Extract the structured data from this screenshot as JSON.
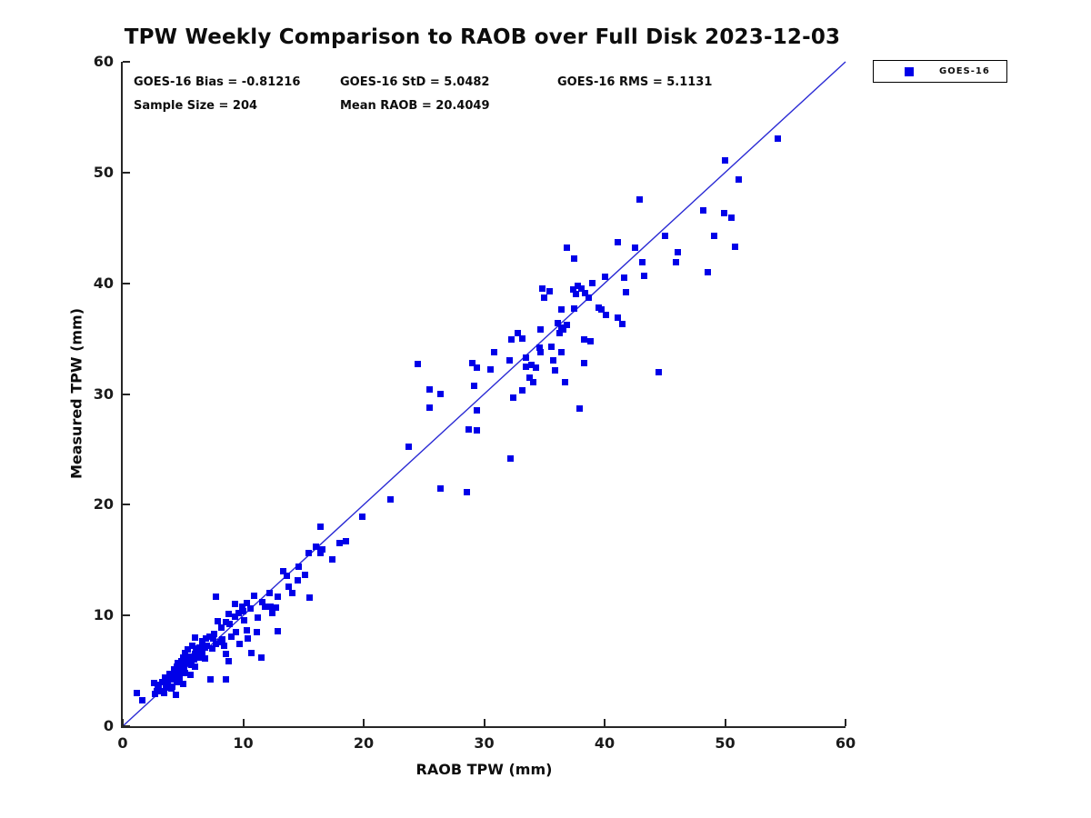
{
  "title": "TPW Weekly Comparison to RAOB over Full Disk 2023-12-03",
  "stats": {
    "bias": "GOES-16 Bias = -0.81216",
    "std": "GOES-16 StD = 5.0482",
    "rms": "GOES-16 RMS = 5.1131",
    "sample_size": "Sample Size = 204",
    "mean_raob": "Mean RAOB = 20.4049"
  },
  "legend": {
    "items": [
      {
        "label": "GOES-16",
        "marker_color": "#0000e8"
      }
    ],
    "position": "top-right-outside"
  },
  "colors": {
    "marker": "#0000e8",
    "reference_line": "#2a2ad4",
    "axis": "#262626",
    "background": "#ffffff"
  },
  "chart_data": {
    "type": "scatter",
    "title": "TPW Weekly Comparison to RAOB over Full Disk 2023-12-03",
    "xlabel": "RAOB TPW (mm)",
    "ylabel": "Measured TPW (mm)",
    "xlim": [
      0,
      60
    ],
    "ylim": [
      0,
      60
    ],
    "xticks": [
      0,
      10,
      20,
      30,
      40,
      50,
      60
    ],
    "yticks": [
      0,
      10,
      20,
      30,
      40,
      50,
      60
    ],
    "grid": false,
    "legend_position": "top-right-outside",
    "reference_line": {
      "type": "identity",
      "from": [
        0,
        0
      ],
      "to": [
        60,
        60
      ]
    },
    "series": [
      {
        "name": "GOES-16",
        "marker": "square",
        "color": "#0000e8",
        "points": [
          [
            1.2,
            3.0
          ],
          [
            1.6,
            2.3
          ],
          [
            2.6,
            3.9
          ],
          [
            7.7,
            11.7
          ],
          [
            10.9,
            11.8
          ],
          [
            11.6,
            11.2
          ],
          [
            9.3,
            11.0
          ],
          [
            9.9,
            10.8
          ],
          [
            10.3,
            11.1
          ],
          [
            10.6,
            10.6
          ],
          [
            8.8,
            10.1
          ],
          [
            9.3,
            9.9
          ],
          [
            7.9,
            9.5
          ],
          [
            8.6,
            9.4
          ],
          [
            10.1,
            9.6
          ],
          [
            11.2,
            9.8
          ],
          [
            10.3,
            8.7
          ],
          [
            9.4,
            8.5
          ],
          [
            11.1,
            8.5
          ],
          [
            6.0,
            8.0
          ],
          [
            6.6,
            7.7
          ],
          [
            7.2,
            8.1
          ],
          [
            7.5,
            7.9
          ],
          [
            8.1,
            7.6
          ],
          [
            8.4,
            7.3
          ],
          [
            6.4,
            7.1
          ],
          [
            6.8,
            7.1
          ],
          [
            5.8,
            7.3
          ],
          [
            5.4,
            6.9
          ],
          [
            5.2,
            6.6
          ],
          [
            5.7,
            6.3
          ],
          [
            6.0,
            6.5
          ],
          [
            6.4,
            6.2
          ],
          [
            6.8,
            6.1
          ],
          [
            4.9,
            5.9
          ],
          [
            5.3,
            5.7
          ],
          [
            5.7,
            5.5
          ],
          [
            6.0,
            5.4
          ],
          [
            4.5,
            5.4
          ],
          [
            4.3,
            5.1
          ],
          [
            4.8,
            5.0
          ],
          [
            5.2,
            4.8
          ],
          [
            3.9,
            4.7
          ],
          [
            3.5,
            4.4
          ],
          [
            5.6,
            4.6
          ],
          [
            4.1,
            4.2
          ],
          [
            4.5,
            4.0
          ],
          [
            3.3,
            4.0
          ],
          [
            3.7,
            3.8
          ],
          [
            5.0,
            3.8
          ],
          [
            3.0,
            3.4
          ],
          [
            4.0,
            3.4
          ],
          [
            2.8,
            3.2
          ],
          [
            3.4,
            3.0
          ],
          [
            4.4,
            2.8
          ],
          [
            7.3,
            4.2
          ],
          [
            8.6,
            4.2
          ],
          [
            8.8,
            5.9
          ],
          [
            10.7,
            6.6
          ],
          [
            11.5,
            6.2
          ],
          [
            13.3,
            14.0
          ],
          [
            13.6,
            13.6
          ],
          [
            12.2,
            12.0
          ],
          [
            11.8,
            10.8
          ],
          [
            12.4,
            10.2
          ],
          [
            12.3,
            10.8
          ],
          [
            26.4,
            21.5
          ],
          [
            28.6,
            21.1
          ],
          [
            22.2,
            20.5
          ],
          [
            19.9,
            18.9
          ],
          [
            16.4,
            18.0
          ],
          [
            16.0,
            16.2
          ],
          [
            16.6,
            16.0
          ],
          [
            15.4,
            15.6
          ],
          [
            16.4,
            15.6
          ],
          [
            18.0,
            16.5
          ],
          [
            18.5,
            16.7
          ],
          [
            17.4,
            15.1
          ],
          [
            14.6,
            14.4
          ],
          [
            15.1,
            13.7
          ],
          [
            14.5,
            13.2
          ],
          [
            13.8,
            12.6
          ],
          [
            14.1,
            12.0
          ],
          [
            12.9,
            11.7
          ],
          [
            15.5,
            11.6
          ],
          [
            12.7,
            10.7
          ],
          [
            12.9,
            8.6
          ],
          [
            24.5,
            32.7
          ],
          [
            29.0,
            32.8
          ],
          [
            29.4,
            32.4
          ],
          [
            30.8,
            33.8
          ],
          [
            30.5,
            32.2
          ],
          [
            32.3,
            34.9
          ],
          [
            32.8,
            35.5
          ],
          [
            33.2,
            35.0
          ],
          [
            34.7,
            35.8
          ],
          [
            33.5,
            33.3
          ],
          [
            34.6,
            34.2
          ],
          [
            34.7,
            33.8
          ],
          [
            35.6,
            34.3
          ],
          [
            35.7,
            33.0
          ],
          [
            36.4,
            33.8
          ],
          [
            33.5,
            32.5
          ],
          [
            33.9,
            32.6
          ],
          [
            34.3,
            32.4
          ],
          [
            35.9,
            32.1
          ],
          [
            33.8,
            31.5
          ],
          [
            34.1,
            31.1
          ],
          [
            36.7,
            31.1
          ],
          [
            33.2,
            30.3
          ],
          [
            32.4,
            29.7
          ],
          [
            38.8,
            34.8
          ],
          [
            38.3,
            32.8
          ],
          [
            37.9,
            28.7
          ],
          [
            25.5,
            30.4
          ],
          [
            26.4,
            30.0
          ],
          [
            25.5,
            28.8
          ],
          [
            29.2,
            30.7
          ],
          [
            29.4,
            28.5
          ],
          [
            28.7,
            26.8
          ],
          [
            29.4,
            26.7
          ],
          [
            23.7,
            25.2
          ],
          [
            32.2,
            24.2
          ],
          [
            48.2,
            46.6
          ],
          [
            45.0,
            44.3
          ],
          [
            50.8,
            43.3
          ],
          [
            41.1,
            43.7
          ],
          [
            42.5,
            43.2
          ],
          [
            36.9,
            43.2
          ],
          [
            37.5,
            42.2
          ],
          [
            43.1,
            41.9
          ],
          [
            46.1,
            42.8
          ],
          [
            45.9,
            41.9
          ],
          [
            48.6,
            41.0
          ],
          [
            40.0,
            40.6
          ],
          [
            41.6,
            40.5
          ],
          [
            43.3,
            40.7
          ],
          [
            39.0,
            40.0
          ],
          [
            37.8,
            39.8
          ],
          [
            38.1,
            39.5
          ],
          [
            37.4,
            39.4
          ],
          [
            38.4,
            39.1
          ],
          [
            37.6,
            39.0
          ],
          [
            41.8,
            39.2
          ],
          [
            38.7,
            38.7
          ],
          [
            34.8,
            39.5
          ],
          [
            35.0,
            38.7
          ],
          [
            35.4,
            39.3
          ],
          [
            36.4,
            37.6
          ],
          [
            37.5,
            37.7
          ],
          [
            39.5,
            37.8
          ],
          [
            39.7,
            37.6
          ],
          [
            40.1,
            37.1
          ],
          [
            41.1,
            36.9
          ],
          [
            41.5,
            36.3
          ],
          [
            36.1,
            36.4
          ],
          [
            36.4,
            36.0
          ],
          [
            36.6,
            35.8
          ],
          [
            36.9,
            36.2
          ],
          [
            36.3,
            35.5
          ],
          [
            38.3,
            34.9
          ],
          [
            32.1,
            33.0
          ],
          [
            54.4,
            53.1
          ],
          [
            50.0,
            51.1
          ],
          [
            51.1,
            49.4
          ],
          [
            42.9,
            47.6
          ],
          [
            49.9,
            46.3
          ],
          [
            50.5,
            45.9
          ],
          [
            49.1,
            44.3
          ],
          [
            44.5,
            32.0
          ],
          [
            4.2,
            4.5
          ],
          [
            4.7,
            4.4
          ],
          [
            5.1,
            5.2
          ],
          [
            5.5,
            5.8
          ],
          [
            5.9,
            6.0
          ],
          [
            6.2,
            6.6
          ],
          [
            6.6,
            6.5
          ],
          [
            7.0,
            7.3
          ],
          [
            7.4,
            7.0
          ],
          [
            7.7,
            7.4
          ],
          [
            6.1,
            7.0
          ],
          [
            5.6,
            6.0
          ],
          [
            4.4,
            4.8
          ],
          [
            3.8,
            4.3
          ],
          [
            3.6,
            3.5
          ],
          [
            4.9,
            5.5
          ],
          [
            5.3,
            6.1
          ],
          [
            6.9,
            7.9
          ],
          [
            7.6,
            8.3
          ],
          [
            8.2,
            8.9
          ],
          [
            8.9,
            9.2
          ],
          [
            9.6,
            10.2
          ],
          [
            10.0,
            10.4
          ],
          [
            8.3,
            7.8
          ],
          [
            9.0,
            8.1
          ],
          [
            2.9,
            3.7
          ],
          [
            3.2,
            3.2
          ],
          [
            2.7,
            2.9
          ],
          [
            4.1,
            3.6
          ],
          [
            4.6,
            5.7
          ],
          [
            5.0,
            6.2
          ],
          [
            8.6,
            6.5
          ],
          [
            10.4,
            7.9
          ],
          [
            9.7,
            7.4
          ]
        ]
      }
    ]
  }
}
